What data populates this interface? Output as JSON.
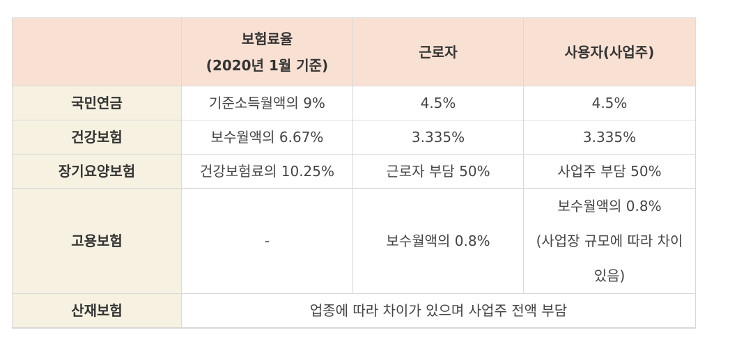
{
  "header": {
    "col0": "",
    "col1_line1": "보험료율",
    "col1_line2": "(2020년 1월 기준)",
    "col2": "근로자",
    "col3": "사용자(사업주)"
  },
  "rows": [
    {
      "name": "국민연금",
      "rate": "기준소득월액의 9%",
      "worker": "4.5%",
      "employer": "4.5%"
    },
    {
      "name": "건강보험",
      "rate": "보수월액의 6.67%",
      "worker": "3.335%",
      "employer": "3.335%"
    },
    {
      "name": "장기요양보험",
      "rate": "건강보험료의 10.25%",
      "worker": "근로자 부담 50%",
      "employer": "사업주 부담 50%"
    },
    {
      "name": "고용보험",
      "rate": "-",
      "worker": "보수월액의 0.8%",
      "employer_line1": "보수월액의 0.8%",
      "employer_line2": "(사업장 규모에 따라 차이",
      "employer_line3": "있음)"
    },
    {
      "name": "산재보험",
      "merged": "업종에 따라 차이가 있으며 사업주 전액 부담"
    }
  ]
}
